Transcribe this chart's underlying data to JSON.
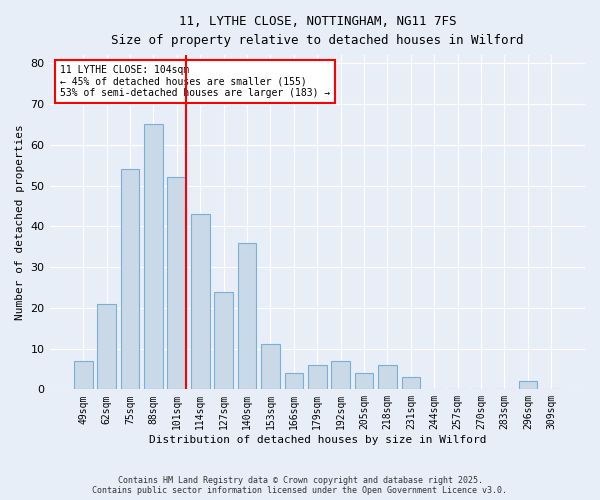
{
  "title1": "11, LYTHE CLOSE, NOTTINGHAM, NG11 7FS",
  "title2": "Size of property relative to detached houses in Wilford",
  "xlabel": "Distribution of detached houses by size in Wilford",
  "ylabel": "Number of detached properties",
  "categories": [
    "49sqm",
    "62sqm",
    "75sqm",
    "88sqm",
    "101sqm",
    "114sqm",
    "127sqm",
    "140sqm",
    "153sqm",
    "166sqm",
    "179sqm",
    "192sqm",
    "205sqm",
    "218sqm",
    "231sqm",
    "244sqm",
    "257sqm",
    "270sqm",
    "283sqm",
    "296sqm",
    "309sqm"
  ],
  "values": [
    7,
    21,
    54,
    65,
    52,
    43,
    24,
    36,
    11,
    4,
    6,
    7,
    4,
    6,
    3,
    0,
    0,
    0,
    0,
    2,
    0
  ],
  "bar_color": "#c9d9e8",
  "bar_edge_color": "#7bafd4",
  "vline_x_index": 4,
  "vline_color": "red",
  "annotation_text": "11 LYTHE CLOSE: 104sqm\n← 45% of detached houses are smaller (155)\n53% of semi-detached houses are larger (183) →",
  "annotation_box_color": "white",
  "annotation_box_edge_color": "red",
  "ylim": [
    0,
    82
  ],
  "yticks": [
    0,
    10,
    20,
    30,
    40,
    50,
    60,
    70,
    80
  ],
  "footnote": "Contains HM Land Registry data © Crown copyright and database right 2025.\nContains public sector information licensed under the Open Government Licence v3.0.",
  "bg_color": "#e8eef8",
  "plot_bg_color": "#e8eef8"
}
